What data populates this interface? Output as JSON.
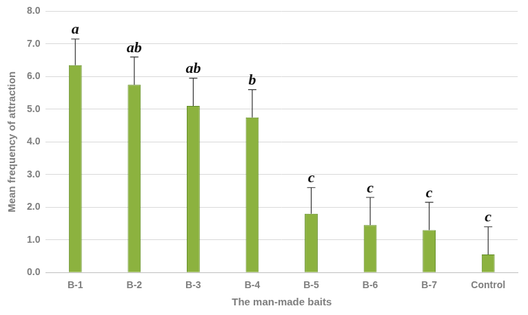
{
  "chart_data": {
    "type": "bar",
    "x_label": "The man-made baits",
    "y_label": "Mean frequency of attraction",
    "categories": [
      "B-1",
      "B-2",
      "B-3",
      "B-4",
      "B-5",
      "B-6",
      "B-7",
      "Control"
    ],
    "values": [
      6.35,
      5.75,
      5.1,
      4.75,
      1.8,
      1.45,
      1.3,
      0.55
    ],
    "errors": [
      0.8,
      0.85,
      0.85,
      0.85,
      0.8,
      0.85,
      0.85,
      0.85
    ],
    "letters": [
      "a",
      "ab",
      "ab",
      "b",
      "c",
      "c",
      "c",
      "c"
    ],
    "color": "#8cb23f",
    "ylim": [
      0,
      8
    ],
    "yticks": [
      {
        "value": 0,
        "label": "0.0"
      },
      {
        "value": 1,
        "label": "1.0"
      },
      {
        "value": 2,
        "label": "2.0"
      },
      {
        "value": 3,
        "label": "3.0"
      },
      {
        "value": 4,
        "label": "4.0"
      },
      {
        "value": 5,
        "label": "5.0"
      },
      {
        "value": 6,
        "label": "6.0"
      },
      {
        "value": 7,
        "label": "7.0"
      },
      {
        "value": 8,
        "label": "8.0"
      }
    ],
    "grid": true
  }
}
